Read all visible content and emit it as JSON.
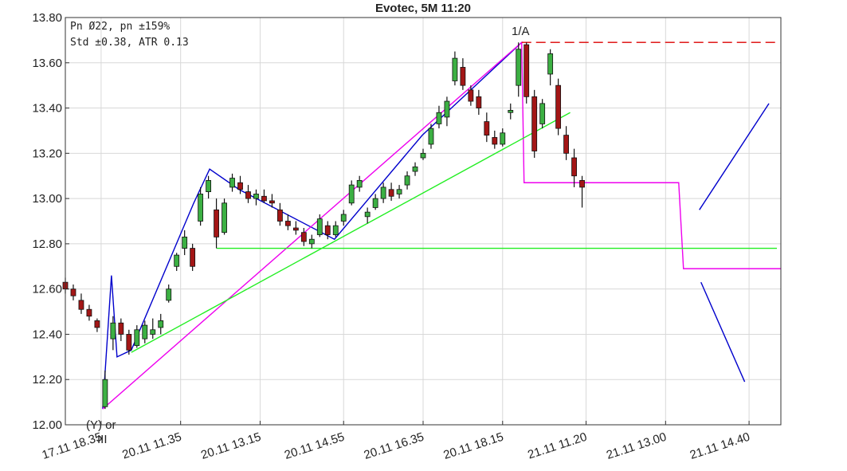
{
  "chart_data": {
    "type": "candlestick",
    "title": "Evotec, 5M 11:20",
    "info": [
      "Pn  Ø22, pn ±159%",
      "Std ±0.38, ATR 0.13"
    ],
    "annotations": [
      "1/A",
      "(Y) or",
      "III"
    ],
    "xlim": [
      0,
      180
    ],
    "ylim": [
      12,
      13.8
    ],
    "xticks": [
      {
        "value": 9,
        "label": "17.11 18.35"
      },
      {
        "value": 29,
        "label": "20.11 11.35"
      },
      {
        "value": 49,
        "label": "20.11 13.15"
      },
      {
        "value": 70,
        "label": "20.11 14.55"
      },
      {
        "value": 90,
        "label": "20.11 16.35"
      },
      {
        "value": 110,
        "label": "20.11 18.15"
      },
      {
        "value": 131,
        "label": "21.11 11.20"
      },
      {
        "value": 151,
        "label": "21.11 13.00"
      },
      {
        "value": 172,
        "label": "21.11 14.40"
      }
    ],
    "yticks": [
      {
        "value": 12,
        "label": "12.00"
      },
      {
        "value": 12.2,
        "label": "12.20"
      },
      {
        "value": 12.4,
        "label": "12.40"
      },
      {
        "value": 12.6,
        "label": "12.60"
      },
      {
        "value": 12.8,
        "label": "12.80"
      },
      {
        "value": 13,
        "label": "13.00"
      },
      {
        "value": 13.2,
        "label": "13.20"
      },
      {
        "value": 13.4,
        "label": "13.40"
      },
      {
        "value": 13.6,
        "label": "13.60"
      },
      {
        "value": 13.8,
        "label": "13.80"
      }
    ],
    "grid": true,
    "up_color": "#3cb043",
    "down_color": "#a31616",
    "candles": {
      "x": [
        0,
        2,
        4,
        6,
        8,
        10,
        12,
        14,
        16,
        18,
        20,
        22,
        24,
        26,
        28,
        30,
        32,
        34,
        36,
        38,
        40,
        42,
        44,
        46,
        48,
        50,
        52,
        54,
        56,
        58,
        60,
        62,
        64,
        66,
        68,
        70,
        72,
        74,
        76,
        78,
        80,
        82,
        84,
        86,
        88,
        90,
        92,
        94,
        96,
        98,
        100,
        102,
        104,
        106,
        108,
        110,
        112,
        114,
        116,
        118,
        120,
        122,
        124,
        126,
        128,
        130
      ],
      "open": [
        12.63,
        12.6,
        12.55,
        12.51,
        12.46,
        12.08,
        12.38,
        12.45,
        12.4,
        12.35,
        12.38,
        12.4,
        12.43,
        12.55,
        12.7,
        12.78,
        12.78,
        12.9,
        13.03,
        12.95,
        12.85,
        13.05,
        13.07,
        13.03,
        13.0,
        13.01,
        12.99,
        12.95,
        12.9,
        12.87,
        12.85,
        12.8,
        12.84,
        12.88,
        12.84,
        12.9,
        12.98,
        13.05,
        12.92,
        12.96,
        13.0,
        13.04,
        13.02,
        13.06,
        13.12,
        13.18,
        13.24,
        13.33,
        13.36,
        13.52,
        13.58,
        13.48,
        13.45,
        13.34,
        13.27,
        13.24,
        13.38,
        13.5,
        13.68,
        13.45,
        13.33,
        13.55,
        13.5,
        13.28,
        13.18,
        13.08
      ],
      "high": [
        12.65,
        12.62,
        12.58,
        12.53,
        12.47,
        12.24,
        12.48,
        12.47,
        12.42,
        12.44,
        12.46,
        12.47,
        12.49,
        12.62,
        12.76,
        12.86,
        12.8,
        13.05,
        13.1,
        13.0,
        13.0,
        13.11,
        13.1,
        13.06,
        13.04,
        13.04,
        13.02,
        12.98,
        12.93,
        12.9,
        12.87,
        12.84,
        12.93,
        12.9,
        12.9,
        12.95,
        13.08,
        13.1,
        12.96,
        13.02,
        13.07,
        13.07,
        13.06,
        13.12,
        13.16,
        13.22,
        13.33,
        13.41,
        13.45,
        13.65,
        13.62,
        13.5,
        13.48,
        13.38,
        13.3,
        13.31,
        13.42,
        13.69,
        13.69,
        13.48,
        13.44,
        13.66,
        13.53,
        13.32,
        13.22,
        13.1
      ],
      "low": [
        12.58,
        12.55,
        12.49,
        12.46,
        12.41,
        12.07,
        12.33,
        12.37,
        12.31,
        12.34,
        12.36,
        12.38,
        12.4,
        12.54,
        12.68,
        12.75,
        12.68,
        12.88,
        13.0,
        12.78,
        12.84,
        13.03,
        13.02,
        12.98,
        12.97,
        12.98,
        12.96,
        12.88,
        12.86,
        12.84,
        12.79,
        12.78,
        12.83,
        12.82,
        12.83,
        12.88,
        12.97,
        13.03,
        12.89,
        12.95,
        12.98,
        12.99,
        13.0,
        13.04,
        13.1,
        13.17,
        13.22,
        13.31,
        13.32,
        13.5,
        13.48,
        13.41,
        13.37,
        13.25,
        13.22,
        13.23,
        13.35,
        13.45,
        13.42,
        13.18,
        13.31,
        13.5,
        13.28,
        13.17,
        13.05,
        12.96
      ],
      "close": [
        12.6,
        12.57,
        12.51,
        12.48,
        12.43,
        12.2,
        12.45,
        12.4,
        12.33,
        12.42,
        12.44,
        12.42,
        12.46,
        12.6,
        12.75,
        12.83,
        12.7,
        13.02,
        13.08,
        12.83,
        12.98,
        13.09,
        13.04,
        13.0,
        13.02,
        12.99,
        12.98,
        12.9,
        12.88,
        12.86,
        12.81,
        12.82,
        12.91,
        12.84,
        12.88,
        12.93,
        13.06,
        13.08,
        12.94,
        13.0,
        13.05,
        13.01,
        13.04,
        13.1,
        13.14,
        13.2,
        13.31,
        13.38,
        13.43,
        13.62,
        13.5,
        13.43,
        13.4,
        13.28,
        13.24,
        13.29,
        13.39,
        13.66,
        13.45,
        13.21,
        13.42,
        13.64,
        13.31,
        13.2,
        13.1,
        13.05
      ]
    },
    "lines": [
      {
        "color": "#0000cc",
        "dash": false,
        "x": [
          9.4,
          11.6,
          13.0,
          16.6,
          32.3,
          36.3,
          43.7,
          67.7,
          89.8,
          114.8
        ],
        "y": [
          12.07,
          12.66,
          12.3,
          12.33,
          12.98,
          13.13,
          13.04,
          12.82,
          13.28,
          13.69
        ]
      },
      {
        "color": "#0000cc",
        "dash": false,
        "x": [
          159.5,
          177.0
        ],
        "y": [
          12.95,
          13.42
        ]
      },
      {
        "color": "#0000cc",
        "dash": false,
        "x": [
          159.9,
          170.9
        ],
        "y": [
          12.63,
          12.19
        ]
      },
      {
        "color": "#ee00ee",
        "dash": false,
        "x": [
          9.4,
          114.8,
          115.4,
          154.3,
          155.5,
          180
        ],
        "y": [
          12.07,
          13.69,
          13.07,
          13.07,
          12.69,
          12.69
        ]
      },
      {
        "color": "#22ee22",
        "dash": false,
        "x": [
          16.6,
          127.0
        ],
        "y": [
          12.32,
          13.38
        ]
      },
      {
        "color": "#22ee22",
        "dash": false,
        "x": [
          38.1,
          179
        ],
        "y": [
          12.78,
          12.78
        ]
      },
      {
        "color": "#dd0000",
        "dash": true,
        "x": [
          114.8,
          179
        ],
        "y": [
          13.69,
          13.69
        ]
      }
    ]
  }
}
